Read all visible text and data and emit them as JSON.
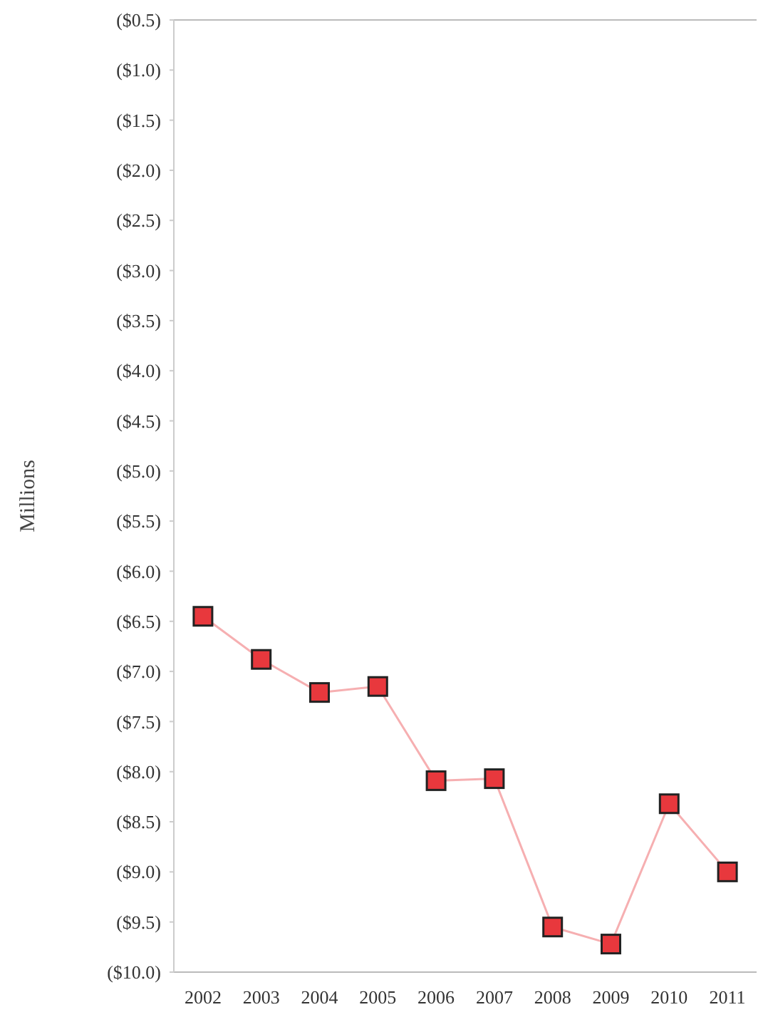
{
  "chart_data": {
    "type": "line",
    "ylabel": "Millions",
    "categories": [
      "2002",
      "2003",
      "2004",
      "2005",
      "2006",
      "2007",
      "2008",
      "2009",
      "2010",
      "2011"
    ],
    "series": [
      {
        "color": "#e8383d",
        "values": [
          -6.45,
          -6.88,
          -7.21,
          -7.15,
          -8.09,
          -8.07,
          -9.55,
          -9.72,
          -8.32,
          -9.0
        ]
      }
    ],
    "ylim": [
      -10,
      -0.5
    ],
    "yticks": [
      {
        "value": -0.5,
        "label": "($0.5)"
      },
      {
        "value": -1,
        "label": "($1.0)"
      },
      {
        "value": -1.5,
        "label": "($1.5)"
      },
      {
        "value": -2,
        "label": "($2.0)"
      },
      {
        "value": -2.5,
        "label": "($2.5)"
      },
      {
        "value": -3,
        "label": "($3.0)"
      },
      {
        "value": -3.5,
        "label": "($3.5)"
      },
      {
        "value": -4,
        "label": "($4.0)"
      },
      {
        "value": -4.5,
        "label": "($4.5)"
      },
      {
        "value": -5,
        "label": "($5.0)"
      },
      {
        "value": -5.5,
        "label": "($5.5)"
      },
      {
        "value": -6,
        "label": "($6.0)"
      },
      {
        "value": -6.5,
        "label": "($6.5)"
      },
      {
        "value": -7,
        "label": "($7.0)"
      },
      {
        "value": -7.5,
        "label": "($7.5)"
      },
      {
        "value": -8,
        "label": "($8.0)"
      },
      {
        "value": -8.5,
        "label": "($8.5)"
      },
      {
        "value": -9,
        "label": "($9.0)"
      },
      {
        "value": -9.5,
        "label": "($9.5)"
      },
      {
        "value": -10,
        "label": "($10.0)"
      }
    ],
    "marker": "square",
    "line_style": "solid"
  }
}
